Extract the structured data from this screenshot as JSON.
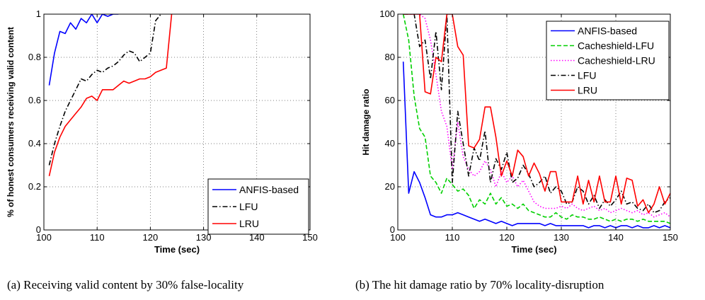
{
  "captions": {
    "a": "(a) Receiving valid content by 30% false-locality",
    "b": "(b) The hit damage ratio by 70% locality-disruption"
  },
  "chart_data": [
    {
      "type": "line",
      "title": "",
      "xlabel": "Time (sec)",
      "ylabel": "% of honest consumers receiving valid content",
      "xlim": [
        100,
        150
      ],
      "ylim": [
        0,
        1
      ],
      "xticks": [
        100,
        110,
        120,
        130,
        140,
        150
      ],
      "yticks": [
        0,
        0.2,
        0.4,
        0.6,
        0.8,
        1
      ],
      "ytick_labels": [
        "0",
        "0.2",
        "0.4",
        "0.6",
        "0.8",
        "1"
      ],
      "grid": true,
      "legend": "bottom-right",
      "series": [
        {
          "name": "ANFIS-based",
          "color": "#0000ff",
          "dash": "solid",
          "x": [
            101,
            102,
            103,
            104,
            105,
            106,
            107,
            108,
            109,
            110,
            111,
            112,
            113,
            114
          ],
          "y": [
            0.67,
            0.82,
            0.92,
            0.91,
            0.96,
            0.93,
            0.98,
            0.96,
            1.0,
            0.96,
            1.0,
            0.99,
            1.0,
            1.0
          ]
        },
        {
          "name": "LFU",
          "color": "#000000",
          "dash": "dashdot",
          "x": [
            101,
            102,
            103,
            104,
            105,
            106,
            107,
            108,
            109,
            110,
            111,
            112,
            113,
            114,
            115,
            116,
            117,
            118,
            119,
            120,
            121,
            122
          ],
          "y": [
            0.3,
            0.4,
            0.48,
            0.55,
            0.6,
            0.65,
            0.7,
            0.69,
            0.72,
            0.74,
            0.73,
            0.75,
            0.76,
            0.78,
            0.81,
            0.83,
            0.82,
            0.78,
            0.8,
            0.82,
            0.97,
            1.0
          ]
        },
        {
          "name": "LRU",
          "color": "#ff0000",
          "dash": "solid",
          "x": [
            101,
            102,
            103,
            104,
            105,
            106,
            107,
            108,
            109,
            110,
            111,
            112,
            113,
            114,
            115,
            116,
            117,
            118,
            119,
            120,
            121,
            122,
            123,
            124
          ],
          "y": [
            0.25,
            0.36,
            0.43,
            0.48,
            0.51,
            0.54,
            0.57,
            0.61,
            0.62,
            0.6,
            0.65,
            0.65,
            0.65,
            0.67,
            0.69,
            0.68,
            0.69,
            0.7,
            0.7,
            0.71,
            0.73,
            0.74,
            0.75,
            1.0
          ]
        }
      ]
    },
    {
      "type": "line",
      "title": "",
      "xlabel": "Time (sec)",
      "ylabel": "Hit damage ratio",
      "xlim": [
        100,
        150
      ],
      "ylim": [
        0,
        100
      ],
      "xticks": [
        100,
        110,
        120,
        130,
        140,
        150
      ],
      "yticks": [
        0,
        20,
        40,
        60,
        80,
        100
      ],
      "ytick_labels": [
        "0",
        "20",
        "40",
        "60",
        "80",
        "100"
      ],
      "grid": true,
      "legend": "top-right",
      "series": [
        {
          "name": "ANFIS-based",
          "color": "#0000ff",
          "dash": "solid",
          "x": [
            101,
            102,
            103,
            104,
            105,
            106,
            107,
            108,
            109,
            110,
            111,
            112,
            113,
            114,
            115,
            116,
            117,
            118,
            119,
            120,
            121,
            122,
            123,
            124,
            125,
            126,
            127,
            128,
            129,
            130,
            131,
            132,
            133,
            134,
            135,
            136,
            137,
            138,
            139,
            140,
            141,
            142,
            143,
            144,
            145,
            146,
            147,
            148,
            149,
            150
          ],
          "y": [
            78,
            17,
            27,
            22,
            15,
            7,
            6,
            6,
            7,
            7,
            8,
            7,
            6,
            5,
            4,
            5,
            4,
            3,
            4,
            3,
            2,
            3,
            3,
            3,
            3,
            3,
            2,
            3,
            2,
            2,
            2,
            2,
            2,
            2,
            1,
            2,
            2,
            1,
            2,
            1,
            2,
            2,
            1,
            2,
            1,
            1,
            2,
            1,
            2,
            1
          ]
        },
        {
          "name": "Cacheshield-LFU",
          "color": "#00d000",
          "dash": "dashed",
          "x": [
            101,
            102,
            103,
            104,
            105,
            106,
            107,
            108,
            109,
            110,
            111,
            112,
            113,
            114,
            115,
            116,
            117,
            118,
            119,
            120,
            121,
            122,
            123,
            124,
            125,
            126,
            127,
            128,
            129,
            130,
            131,
            132,
            133,
            134,
            135,
            136,
            137,
            138,
            139,
            140,
            141,
            142,
            143,
            144,
            145,
            146,
            147,
            148,
            149,
            150
          ],
          "y": [
            100,
            88,
            62,
            47,
            43,
            25,
            22,
            17,
            24,
            21,
            18,
            19,
            16,
            10,
            14,
            12,
            17,
            12,
            15,
            11,
            12,
            10,
            12,
            9,
            8,
            7,
            6,
            6,
            8,
            6,
            5,
            7,
            6,
            6,
            5,
            5,
            6,
            5,
            4,
            5,
            4,
            5,
            5,
            4,
            5,
            4,
            4,
            4,
            4,
            3
          ]
        },
        {
          "name": "Cacheshield-LRU",
          "color": "#ff00ff",
          "dash": "dotted",
          "x": [
            101,
            102,
            103,
            104,
            105,
            106,
            107,
            108,
            109,
            110,
            111,
            112,
            113,
            114,
            115,
            116,
            117,
            118,
            119,
            120,
            121,
            122,
            123,
            124,
            125,
            126,
            127,
            128,
            129,
            130,
            131,
            132,
            133,
            134,
            135,
            136,
            137,
            138,
            139,
            140,
            141,
            142,
            143,
            144,
            145,
            146,
            147,
            148,
            149,
            150
          ],
          "y": [
            100,
            100,
            100,
            100,
            98,
            88,
            72,
            55,
            48,
            28,
            50,
            34,
            28,
            25,
            27,
            32,
            28,
            20,
            27,
            22,
            25,
            20,
            23,
            18,
            13,
            11,
            10,
            10,
            10,
            11,
            10,
            12,
            10,
            9,
            10,
            11,
            9,
            10,
            8,
            9,
            10,
            9,
            8,
            9,
            7,
            8,
            6,
            7,
            8,
            6
          ]
        },
        {
          "name": "LFU",
          "color": "#000000",
          "dash": "dashdot",
          "x": [
            101,
            102,
            103,
            104,
            105,
            106,
            107,
            108,
            109,
            110,
            111,
            112,
            113,
            114,
            115,
            116,
            117,
            118,
            119,
            120,
            121,
            122,
            123,
            124,
            125,
            126,
            127,
            128,
            129,
            130,
            131,
            132,
            133,
            134,
            135,
            136,
            137,
            138,
            139,
            140,
            141,
            142,
            143,
            144,
            145,
            146,
            147,
            148,
            149,
            150
          ],
          "y": [
            100,
            100,
            100,
            85,
            88,
            70,
            92,
            65,
            100,
            22,
            55,
            40,
            25,
            38,
            32,
            46,
            22,
            33,
            28,
            36,
            22,
            24,
            30,
            26,
            20,
            22,
            25,
            17,
            20,
            18,
            12,
            13,
            20,
            18,
            12,
            16,
            10,
            14,
            11,
            14,
            18,
            12,
            13,
            10,
            9,
            12,
            8,
            9,
            13,
            15
          ]
        },
        {
          "name": "LRU",
          "color": "#ff0000",
          "dash": "solid",
          "x": [
            101,
            102,
            103,
            104,
            105,
            106,
            107,
            108,
            109,
            110,
            111,
            112,
            113,
            114,
            115,
            116,
            117,
            118,
            119,
            120,
            121,
            122,
            123,
            124,
            125,
            126,
            127,
            128,
            129,
            130,
            131,
            132,
            133,
            134,
            135,
            136,
            137,
            138,
            139,
            140,
            141,
            142,
            143,
            144,
            145,
            146,
            147,
            148,
            149,
            150
          ],
          "y": [
            100,
            100,
            100,
            100,
            64,
            63,
            80,
            78,
            100,
            100,
            85,
            81,
            39,
            38,
            42,
            57,
            57,
            43,
            25,
            32,
            25,
            37,
            34,
            25,
            31,
            26,
            18,
            27,
            27,
            13,
            13,
            13,
            25,
            12,
            23,
            13,
            25,
            13,
            13,
            25,
            12,
            24,
            23,
            11,
            14,
            8,
            12,
            20,
            12,
            17
          ]
        }
      ]
    }
  ]
}
